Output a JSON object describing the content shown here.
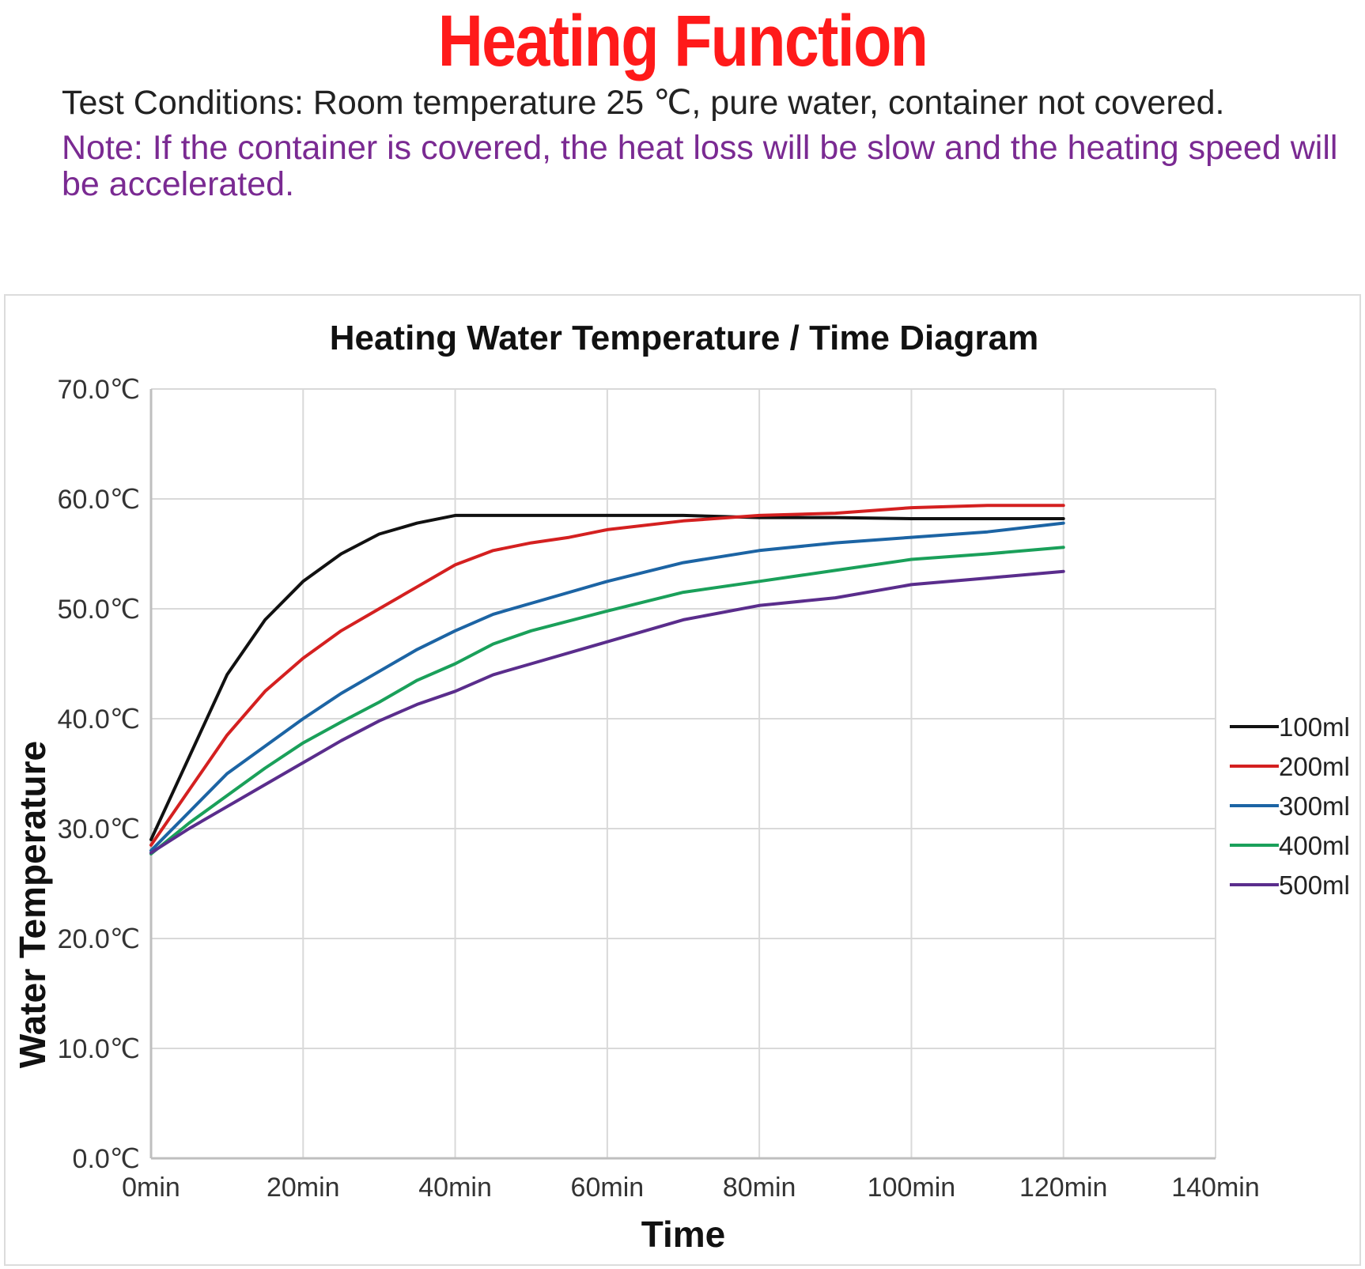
{
  "header": {
    "title": "Heating Function",
    "test_conditions": "Test Conditions: Room temperature 25 ℃, pure water, container not covered.",
    "note": "Note: If the container is covered, the heat loss will be slow and the heating speed will be accelerated."
  },
  "colors": {
    "title": "#ff1a1a",
    "note": "#7a2a92",
    "grid": "#d9d9d9"
  },
  "chart_data": {
    "type": "line",
    "title": "Heating Water Temperature / Time Diagram",
    "xlabel": "Time",
    "ylabel": "Water Temperature",
    "xlim": [
      0,
      140
    ],
    "ylim": [
      0,
      70
    ],
    "x_ticks": [
      0,
      20,
      40,
      60,
      80,
      100,
      120,
      140
    ],
    "x_tick_labels": [
      "0min",
      "20min",
      "40min",
      "60min",
      "80min",
      "100min",
      "120min",
      "140min"
    ],
    "y_ticks": [
      0,
      10,
      20,
      30,
      40,
      50,
      60,
      70
    ],
    "y_tick_labels": [
      "0.0℃",
      "10.0℃",
      "20.0℃",
      "30.0℃",
      "40.0℃",
      "50.0℃",
      "60.0℃",
      "70.0℃"
    ],
    "grid": true,
    "legend_position": "right",
    "series": [
      {
        "name": "100ml",
        "color": "#111111",
        "x": [
          0,
          5,
          10,
          15,
          20,
          25,
          30,
          35,
          40,
          45,
          50,
          60,
          70,
          80,
          90,
          100,
          110,
          120
        ],
        "y": [
          29.0,
          36.5,
          44.0,
          49.0,
          52.5,
          55.0,
          56.8,
          57.8,
          58.5,
          58.5,
          58.5,
          58.5,
          58.5,
          58.3,
          58.3,
          58.2,
          58.2,
          58.2
        ]
      },
      {
        "name": "200ml",
        "color": "#d42020",
        "x": [
          0,
          5,
          10,
          15,
          20,
          25,
          30,
          35,
          40,
          45,
          50,
          55,
          60,
          70,
          80,
          90,
          100,
          110,
          120
        ],
        "y": [
          28.5,
          33.5,
          38.5,
          42.5,
          45.5,
          48.0,
          50.0,
          52.0,
          54.0,
          55.3,
          56.0,
          56.5,
          57.2,
          58.0,
          58.5,
          58.7,
          59.2,
          59.4,
          59.4
        ]
      },
      {
        "name": "300ml",
        "color": "#1c64a4",
        "x": [
          0,
          5,
          10,
          15,
          20,
          25,
          30,
          35,
          40,
          45,
          50,
          60,
          70,
          80,
          90,
          100,
          110,
          120
        ],
        "y": [
          28.0,
          31.5,
          35.0,
          37.5,
          40.0,
          42.3,
          44.3,
          46.3,
          48.0,
          49.5,
          50.5,
          52.5,
          54.2,
          55.3,
          56.0,
          56.5,
          57.0,
          57.8
        ]
      },
      {
        "name": "400ml",
        "color": "#1aa05a",
        "x": [
          0,
          5,
          10,
          15,
          20,
          25,
          30,
          35,
          40,
          45,
          50,
          60,
          70,
          80,
          90,
          100,
          110,
          120
        ],
        "y": [
          27.7,
          30.5,
          33.0,
          35.5,
          37.8,
          39.7,
          41.5,
          43.5,
          45.0,
          46.8,
          48.0,
          49.8,
          51.5,
          52.5,
          53.5,
          54.5,
          55.0,
          55.6
        ]
      },
      {
        "name": "500ml",
        "color": "#5a2d8c",
        "x": [
          0,
          5,
          10,
          15,
          20,
          25,
          30,
          35,
          40,
          45,
          50,
          60,
          70,
          80,
          90,
          100,
          110,
          120
        ],
        "y": [
          27.8,
          30.0,
          32.0,
          34.0,
          36.0,
          38.0,
          39.8,
          41.3,
          42.5,
          44.0,
          45.0,
          47.0,
          49.0,
          50.3,
          51.0,
          52.2,
          52.8,
          53.4
        ]
      }
    ]
  }
}
